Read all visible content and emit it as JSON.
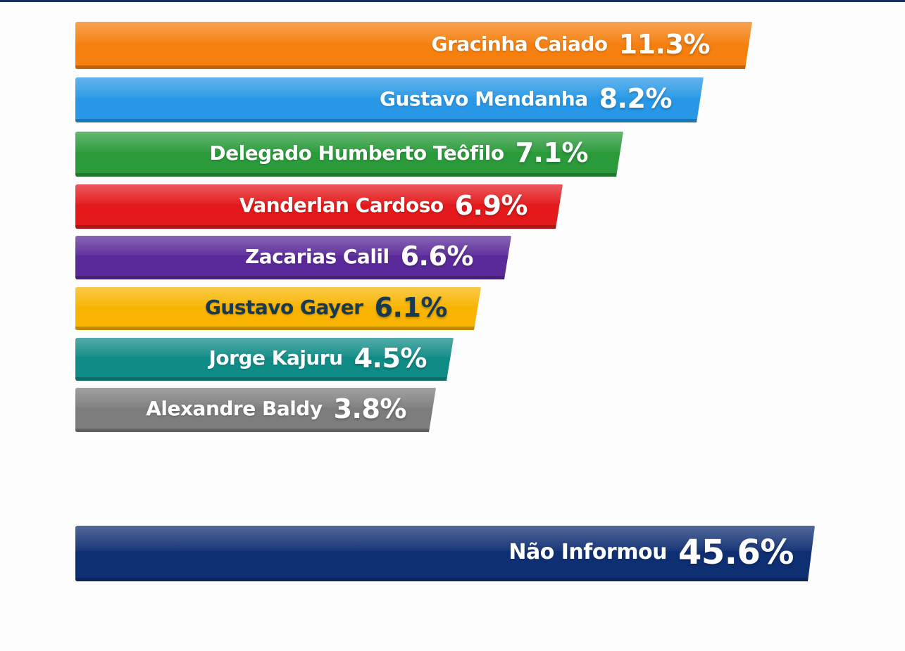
{
  "chart_data": {
    "type": "bar",
    "orientation": "horizontal",
    "title": "",
    "xlabel": "",
    "ylabel": "",
    "grid": false,
    "unit": "%",
    "categories": [
      "Gracinha Caiado",
      "Gustavo Mendanha",
      "Delegado Humberto Teôfilo",
      "Vanderlan Cardoso",
      "Zacarias Calil",
      "Gustavo Gayer",
      "Jorge Kajuru",
      "Alexandre Baldy",
      "Não Informou"
    ],
    "values": [
      11.3,
      8.2,
      7.1,
      6.9,
      6.6,
      6.1,
      4.5,
      3.8,
      45.6
    ],
    "value_labels": [
      "11.3%",
      "8.2%",
      "7.1%",
      "6.9%",
      "6.6%",
      "6.1%",
      "4.5%",
      "3.8%",
      "45.6%"
    ],
    "colors": [
      "#f57f0f",
      "#2797e6",
      "#2a9a3a",
      "#e3191b",
      "#5b2a9a",
      "#f8b400",
      "#108c86",
      "#7d7d7d",
      "#0f2f73"
    ],
    "label_colors": [
      "#ffffff",
      "#ffffff",
      "#ffffff",
      "#ffffff",
      "#ffffff",
      "#173a52",
      "#ffffff",
      "#ffffff",
      "#ffffff"
    ]
  }
}
